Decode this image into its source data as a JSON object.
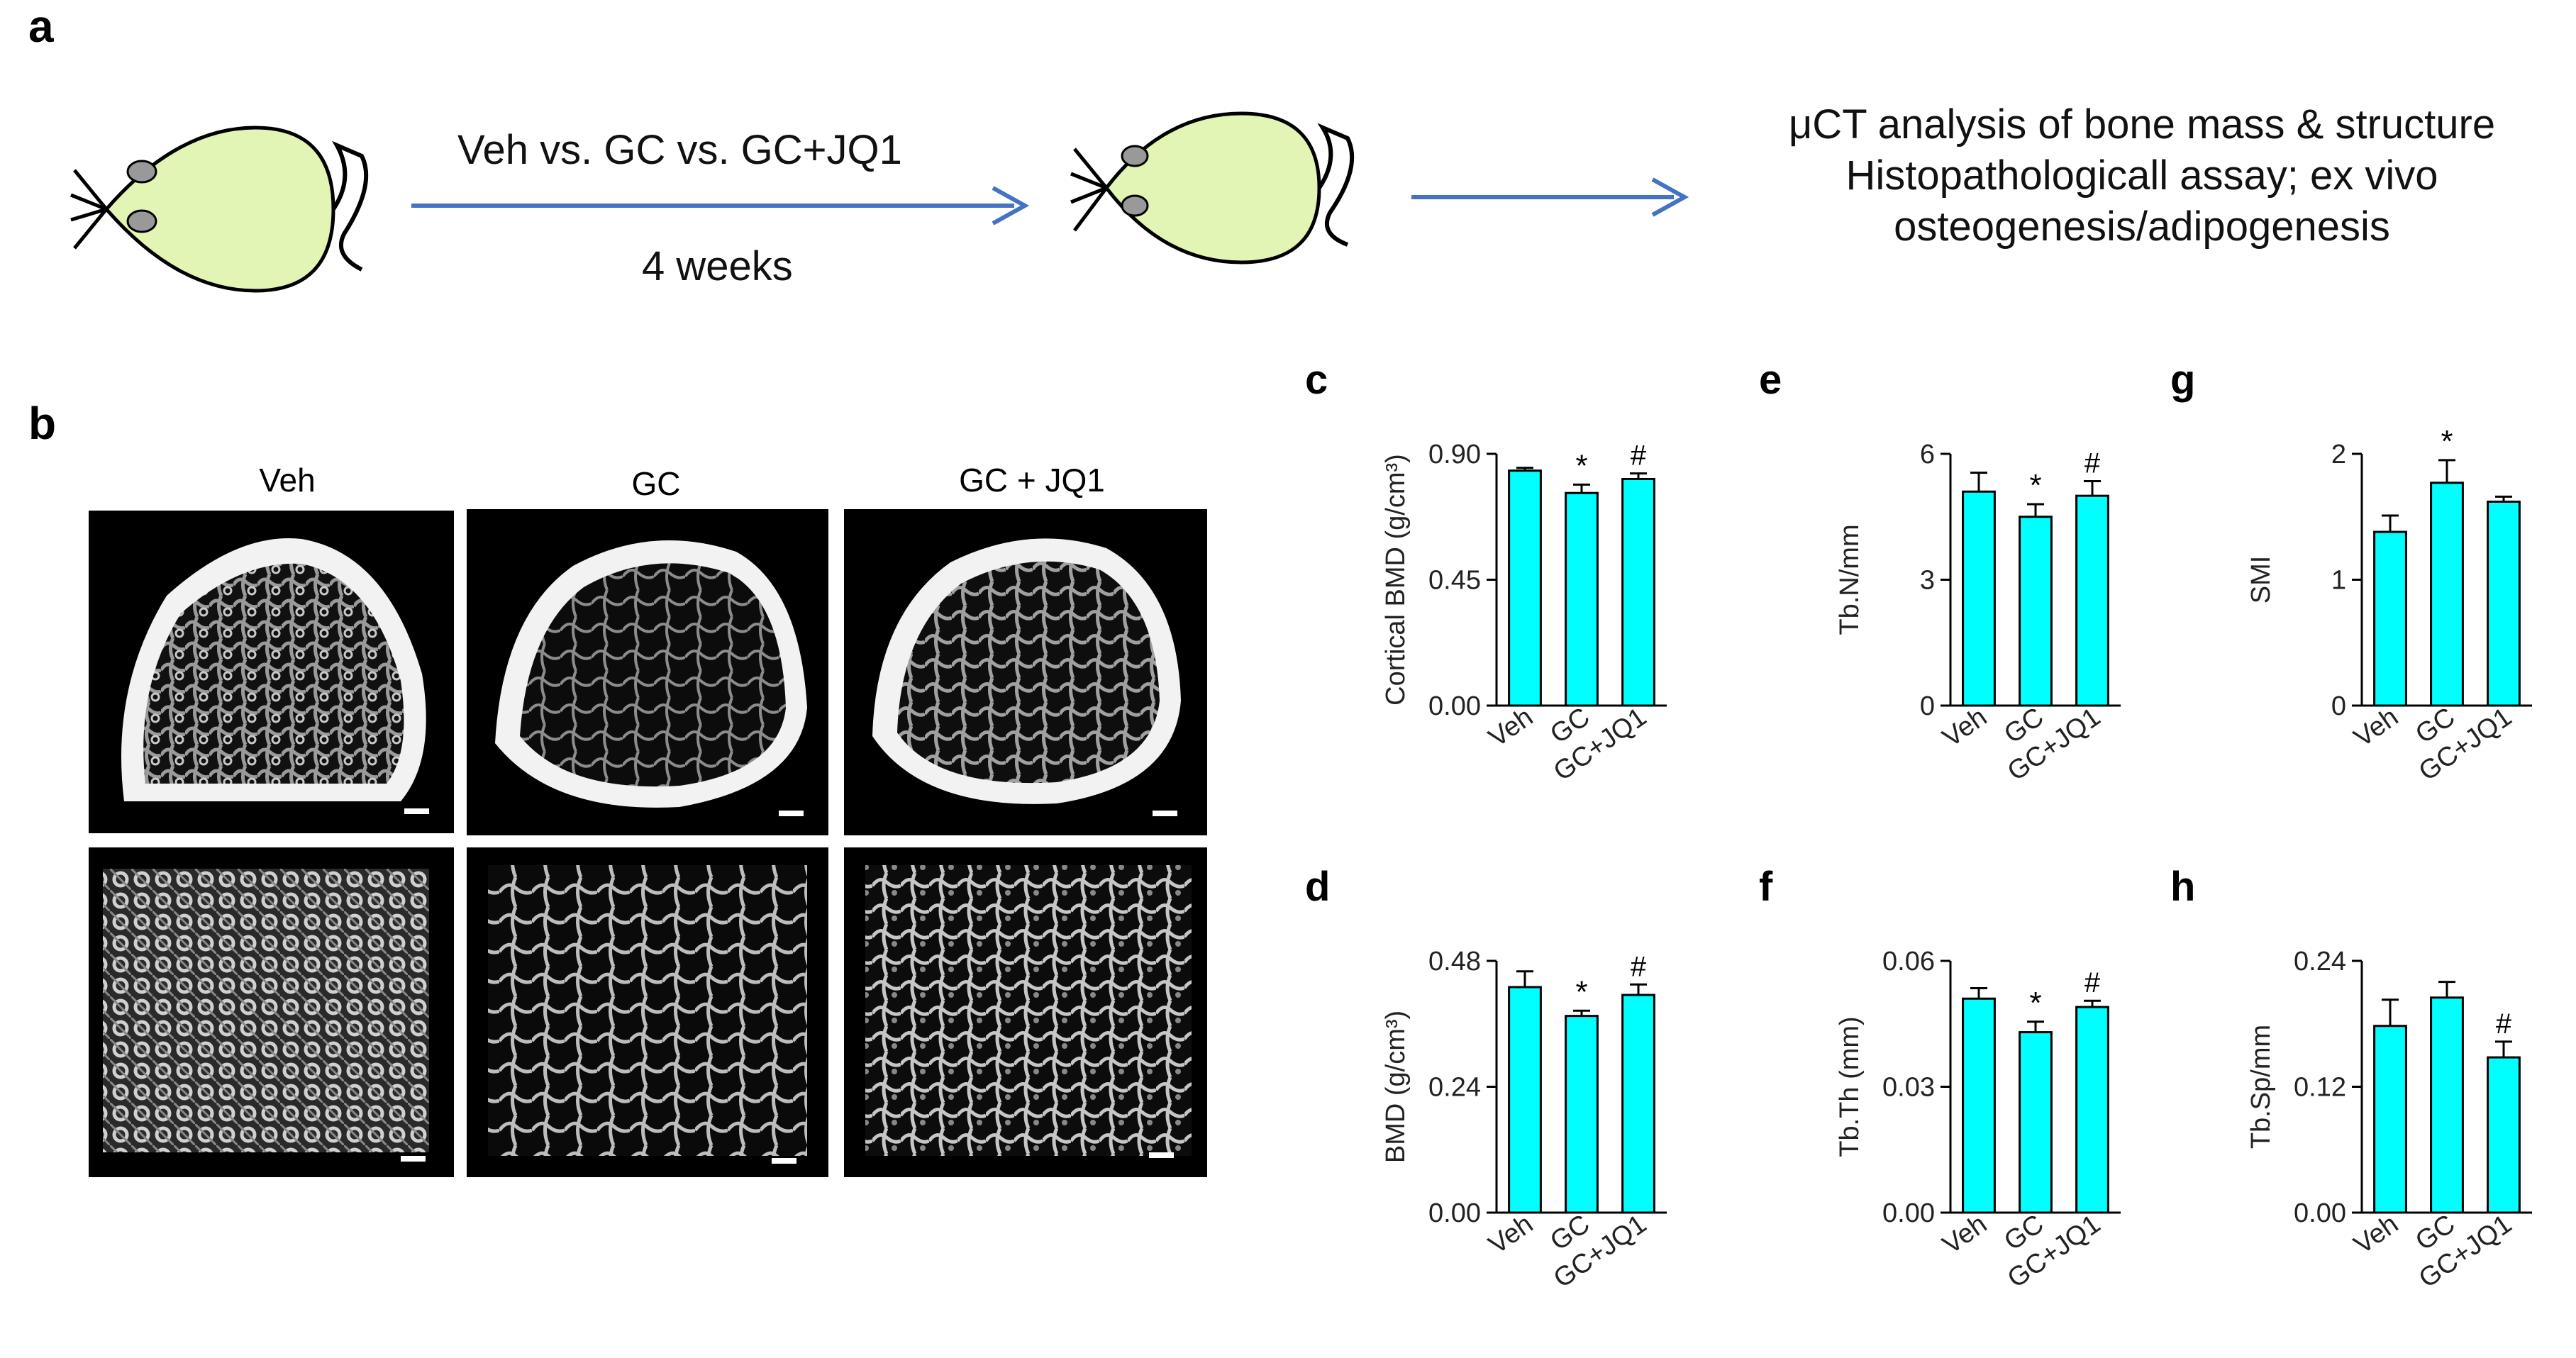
{
  "panel_a": {
    "letter": "a",
    "treatment_label": "Veh vs. GC vs. GC+JQ1",
    "duration_label": "4 weeks",
    "outcome_lines": [
      "μCT analysis of bone mass & structure",
      "Histopathologicall  assay; ex vivo",
      "osteogenesis/adipogenesis"
    ]
  },
  "panel_b": {
    "letter": "b",
    "groups": [
      "Veh",
      "GC",
      "GC + JQ1"
    ]
  },
  "colors": {
    "bar_fill": "#00ffff",
    "bar_stroke": "#000000",
    "arrow": "#4472c4",
    "mouse_body": "#e2f5b5",
    "mouse_ear": "#999999"
  },
  "chart_data": [
    {
      "letter": "c",
      "type": "bar",
      "ylabel": "Cortical BMD (g/cm³)",
      "categories": [
        "Veh",
        "GC",
        "GC+JQ1"
      ],
      "values": [
        0.84,
        0.76,
        0.81
      ],
      "errors": [
        0.01,
        0.03,
        0.02
      ],
      "ylim": [
        0,
        0.9
      ],
      "yticks": [
        0,
        0.45,
        0.9
      ],
      "yticklabels": [
        "0.00",
        "0.45",
        "0.90"
      ],
      "annotations": [
        "",
        "*",
        "#"
      ]
    },
    {
      "letter": "e",
      "type": "bar",
      "ylabel": "Tb.N/mm",
      "categories": [
        "Veh",
        "GC",
        "GC+JQ1"
      ],
      "values": [
        5.1,
        4.5,
        5.0
      ],
      "errors": [
        0.45,
        0.3,
        0.35
      ],
      "ylim": [
        0,
        6
      ],
      "yticks": [
        0,
        3,
        6
      ],
      "yticklabels": [
        "0",
        "3",
        "6"
      ],
      "annotations": [
        "",
        "*",
        "#"
      ]
    },
    {
      "letter": "g",
      "type": "bar",
      "ylabel": "SMI",
      "categories": [
        "Veh",
        "GC",
        "GC+JQ1"
      ],
      "values": [
        1.38,
        1.77,
        1.62
      ],
      "errors": [
        0.13,
        0.18,
        0.04
      ],
      "ylim": [
        0,
        2
      ],
      "yticks": [
        0,
        1,
        2
      ],
      "yticklabels": [
        "0",
        "1",
        "2"
      ],
      "annotations": [
        "",
        "*",
        ""
      ]
    },
    {
      "letter": "d",
      "type": "bar",
      "ylabel": "BMD (g/cm³)",
      "categories": [
        "Veh",
        "GC",
        "GC+JQ1"
      ],
      "values": [
        0.43,
        0.375,
        0.415
      ],
      "errors": [
        0.03,
        0.01,
        0.02
      ],
      "ylim": [
        0,
        0.48
      ],
      "yticks": [
        0,
        0.24,
        0.48
      ],
      "yticklabels": [
        "0.00",
        "0.24",
        "0.48"
      ],
      "annotations": [
        "",
        "*",
        "#"
      ]
    },
    {
      "letter": "f",
      "type": "bar",
      "ylabel": "Tb.Th (mm)",
      "categories": [
        "Veh",
        "GC",
        "GC+JQ1"
      ],
      "values": [
        0.051,
        0.043,
        0.049
      ],
      "errors": [
        0.0025,
        0.0025,
        0.0015
      ],
      "ylim": [
        0,
        0.06
      ],
      "yticks": [
        0,
        0.03,
        0.06
      ],
      "yticklabels": [
        "0.00",
        "0.03",
        "0.06"
      ],
      "annotations": [
        "",
        "*",
        "#"
      ]
    },
    {
      "letter": "h",
      "type": "bar",
      "ylabel": "Tb.Sp/mm",
      "categories": [
        "Veh",
        "GC",
        "GC+JQ1"
      ],
      "values": [
        0.178,
        0.205,
        0.148
      ],
      "errors": [
        0.025,
        0.015,
        0.015
      ],
      "ylim": [
        0,
        0.24
      ],
      "yticks": [
        0,
        0.12,
        0.24
      ],
      "yticklabels": [
        "0.00",
        "0.12",
        "0.24"
      ],
      "annotations": [
        "",
        "",
        "#"
      ]
    }
  ]
}
